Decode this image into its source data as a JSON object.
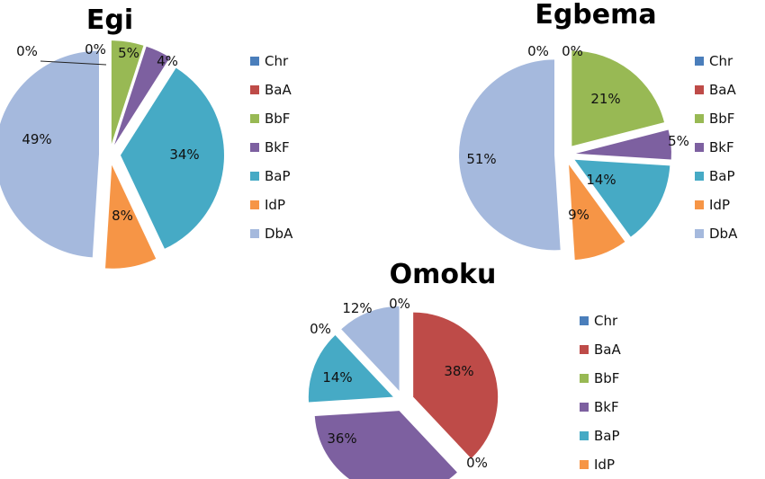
{
  "chart_data": [
    {
      "type": "pie",
      "title": "Egi",
      "categories": [
        "Chr",
        "BaA",
        "BbF",
        "BkF",
        "BaP",
        "IdP",
        "DbA"
      ],
      "values": [
        0,
        0,
        5,
        4,
        34,
        8,
        49
      ],
      "labels": [
        "0%",
        "0%",
        "5%",
        "4%",
        "34%",
        "8%",
        "49%"
      ],
      "legend": "right",
      "exploded": true
    },
    {
      "type": "pie",
      "title": "Egbema",
      "categories": [
        "Chr",
        "BaA",
        "BbF",
        "BkF",
        "BaP",
        "IdP",
        "DbA"
      ],
      "values": [
        0,
        0,
        21,
        5,
        14,
        9,
        51
      ],
      "labels": [
        "0%",
        "0%",
        "21%",
        "5%",
        "14%",
        "9%",
        "51%"
      ],
      "legend": "right",
      "exploded": true
    },
    {
      "type": "pie",
      "title": "Omoku",
      "categories": [
        "Chr",
        "BaA",
        "BbF",
        "BkF",
        "BaP",
        "IdP",
        "DbA"
      ],
      "values": [
        0,
        38,
        0,
        36,
        14,
        0,
        12
      ],
      "labels": [
        "0%",
        "38%",
        "0%",
        "36%",
        "14%",
        "0%",
        "12%"
      ],
      "legend_visible": [
        "Chr",
        "BaA",
        "BbF",
        "BkF",
        "BaP",
        "IdP"
      ],
      "legend": "right",
      "exploded": true
    }
  ],
  "colors": {
    "Chr": "#4a7ebb",
    "BaA": "#be4b48",
    "BbF": "#98b954",
    "BkF": "#7d60a0",
    "BaP": "#46aac5",
    "IdP": "#f69546",
    "DbA": "#a5b9dd"
  }
}
